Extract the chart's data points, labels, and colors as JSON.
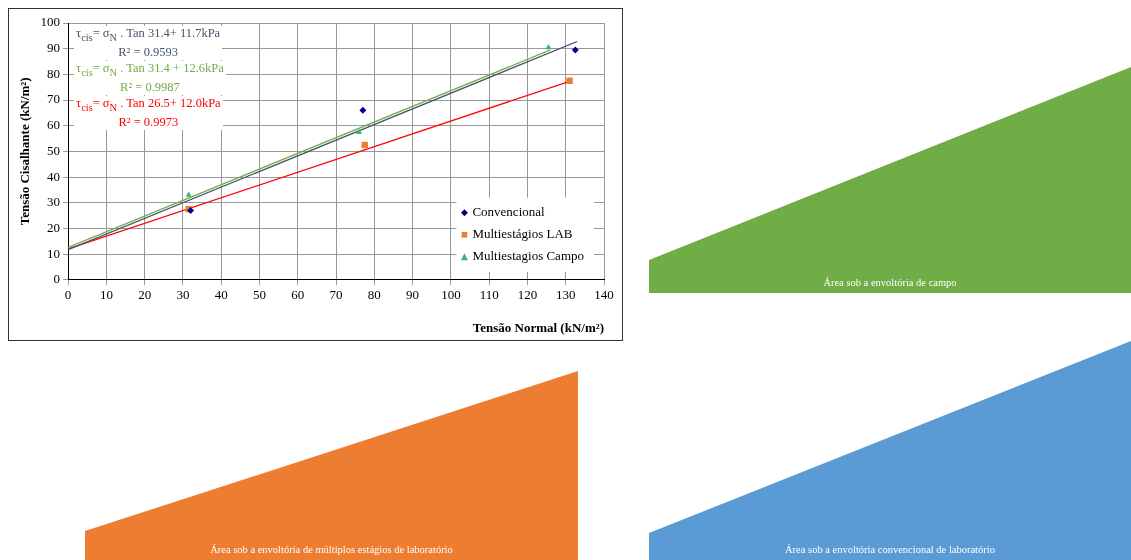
{
  "chart_data": {
    "type": "scatter",
    "xlabel": "Tensão Normal (kN/m²)",
    "ylabel": "Tensão Cisalhante (kN/m²)",
    "xlim": [
      0,
      140
    ],
    "xticks": [
      0,
      10,
      20,
      30,
      40,
      50,
      60,
      70,
      80,
      90,
      100,
      110,
      120,
      130,
      140
    ],
    "ylim": [
      0,
      100
    ],
    "yticks": [
      0,
      10,
      20,
      30,
      40,
      50,
      60,
      70,
      80,
      90,
      100
    ],
    "grid": true,
    "legend": "bottom right",
    "series": [
      {
        "name": "Convencional",
        "color": "#00008b",
        "marker": "diamond",
        "x": [
          32,
          77,
          132.5
        ],
        "values": [
          27,
          66,
          89.5
        ]
      },
      {
        "name": "Multiestágios LAB",
        "color": "#ed7d31",
        "marker": "square",
        "x": [
          31.5,
          77.5,
          131
        ],
        "values": [
          27.5,
          52.5,
          77.5
        ]
      },
      {
        "name": "Multiestagios Campo",
        "color": "#3cb371",
        "marker": "triangle",
        "x": [
          31.5,
          76,
          125.5
        ],
        "values": [
          33,
          57.5,
          90.5
        ]
      },
      {
        "type": "line",
        "color": "#44546a",
        "marker": "none",
        "x": [
          0,
          133
        ],
        "values": [
          11.7,
          92.8
        ]
      },
      {
        "type": "line",
        "color": "#70ad47",
        "marker": "none",
        "x": [
          0,
          126
        ],
        "values": [
          12.6,
          89.5
        ]
      },
      {
        "type": "line",
        "color": "#ff0000",
        "marker": "none",
        "x": [
          0,
          131
        ],
        "values": [
          12.0,
          77.3
        ]
      }
    ],
    "annotations": [
      "τ$_{cis}$= σ$_{N}$ . Tan 31.4+  11.7kPa",
      "R² = 0.9593",
      "τ$_{cis}$= σ$_{N}$ . Tan 31.4 + 12.6kPa",
      "R² = 0.9987",
      "τ$_{cis}$= σ$_{N}$ . Tan 26.5+ 12.0kPa",
      "R² = 0.9973",
      "Área sob a envoltória de campo",
      "Área sob a envoltória de múltiplos  estágios de laboratório",
      "Área sob a envoltória convencional de laboratório"
    ]
  }
}
